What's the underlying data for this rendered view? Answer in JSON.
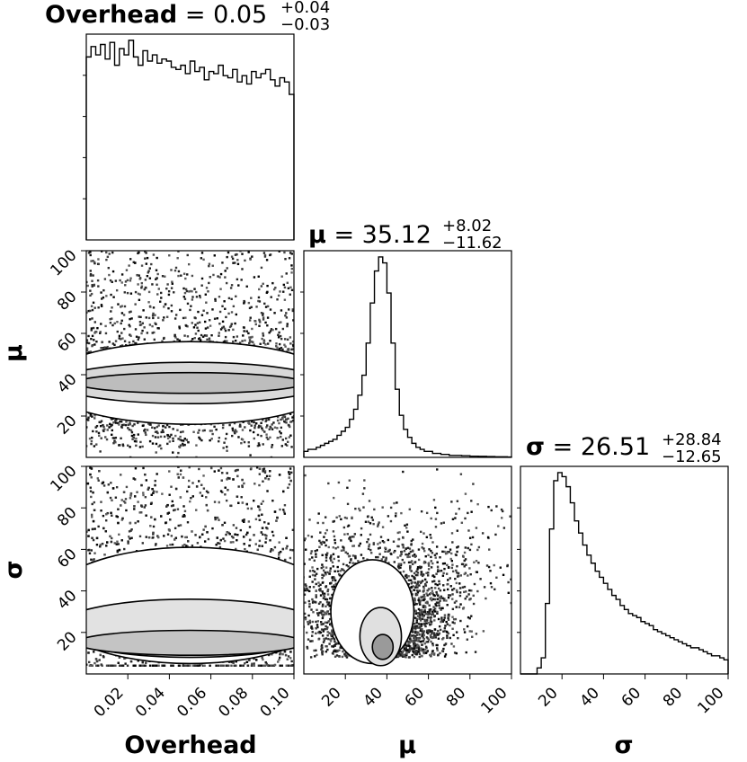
{
  "chart_data": {
    "type": "corner",
    "parameters": [
      "Overhead",
      "μ",
      "σ"
    ],
    "axis_labels": {
      "overhead": "Overhead",
      "mu": "μ",
      "sigma": "σ"
    },
    "titles": {
      "overhead": {
        "name": "Overhead",
        "eq": " = ",
        "median": "0.05",
        "plus": "+0.04",
        "minus": "−0.03"
      },
      "mu": {
        "name": "μ",
        "eq": " = ",
        "median": "35.12",
        "plus": "+8.02",
        "minus": "−11.62"
      },
      "sigma": {
        "name": "σ",
        "eq": " = ",
        "median": "26.51",
        "plus": "+28.84",
        "minus": "−12.65"
      }
    },
    "ranges": {
      "overhead": [
        0.0,
        0.1
      ],
      "mu": [
        0,
        100
      ],
      "sigma": [
        0,
        100
      ]
    },
    "ticks": {
      "overhead": [
        "0.02",
        "0.04",
        "0.06",
        "0.08",
        "0.10"
      ],
      "mu": [
        "20",
        "40",
        "60",
        "80",
        "100"
      ],
      "sigma": [
        "20",
        "40",
        "60",
        "80",
        "100"
      ]
    },
    "tick_values": {
      "overhead": [
        0.02,
        0.04,
        0.06,
        0.08,
        0.1
      ],
      "mu": [
        20,
        40,
        60,
        80,
        100
      ],
      "sigma": [
        20,
        40,
        60,
        80,
        100
      ]
    },
    "overhead_hist": {
      "bin_edges_range": [
        0.0,
        0.1
      ],
      "counts": [
        0.88,
        0.93,
        0.89,
        0.94,
        0.87,
        0.95,
        0.84,
        0.92,
        0.89,
        0.96,
        0.88,
        0.84,
        0.91,
        0.86,
        0.89,
        0.85,
        0.87,
        0.86,
        0.83,
        0.82,
        0.84,
        0.8,
        0.86,
        0.81,
        0.83,
        0.77,
        0.81,
        0.8,
        0.84,
        0.79,
        0.78,
        0.82,
        0.76,
        0.79,
        0.75,
        0.81,
        0.78,
        0.8,
        0.82,
        0.77,
        0.74,
        0.78,
        0.76,
        0.7
      ]
    },
    "mu_hist": {
      "bin_edges_range": [
        0,
        100
      ],
      "counts": [
        0.03,
        0.04,
        0.04,
        0.05,
        0.06,
        0.07,
        0.08,
        0.09,
        0.11,
        0.13,
        0.15,
        0.19,
        0.24,
        0.31,
        0.41,
        0.57,
        0.77,
        0.93,
        1.0,
        0.97,
        0.82,
        0.57,
        0.34,
        0.21,
        0.14,
        0.1,
        0.07,
        0.05,
        0.04,
        0.03,
        0.03,
        0.02,
        0.02,
        0.015,
        0.015,
        0.01,
        0.01,
        0.01,
        0.008,
        0.008,
        0.006,
        0.006,
        0.005,
        0.005,
        0.004,
        0.004,
        0.003,
        0.003,
        0.003,
        0.002
      ]
    },
    "sigma_hist": {
      "bin_edges_range": [
        0,
        100
      ],
      "counts": [
        0,
        0,
        0,
        0,
        0.03,
        0.08,
        0.35,
        0.72,
        0.96,
        1.0,
        0.98,
        0.93,
        0.85,
        0.76,
        0.7,
        0.64,
        0.59,
        0.55,
        0.51,
        0.48,
        0.45,
        0.42,
        0.39,
        0.37,
        0.34,
        0.32,
        0.3,
        0.29,
        0.28,
        0.26,
        0.25,
        0.24,
        0.22,
        0.21,
        0.2,
        0.19,
        0.18,
        0.17,
        0.16,
        0.15,
        0.14,
        0.13,
        0.13,
        0.12,
        0.11,
        0.1,
        0.09,
        0.09,
        0.08,
        0.07
      ]
    },
    "mu_vs_overhead": {
      "x_param": "Overhead",
      "y_param": "μ",
      "mode_y": 35,
      "spread_y": 10,
      "x_correlation": "none"
    },
    "sigma_vs_overhead": {
      "x_param": "Overhead",
      "y_param": "σ",
      "mode_y": 15,
      "spread_y": 20,
      "x_correlation": "none"
    },
    "sigma_vs_mu": {
      "x_param": "μ",
      "y_param": "σ",
      "mode_x": 37,
      "mode_y": 12,
      "shape": "elongated vertical, widening with σ"
    },
    "grid": false,
    "colors": {
      "line": "#000000",
      "background": "#ffffff",
      "density_dark": "#1a1a1a",
      "density_light": "#cfcfcf"
    }
  }
}
